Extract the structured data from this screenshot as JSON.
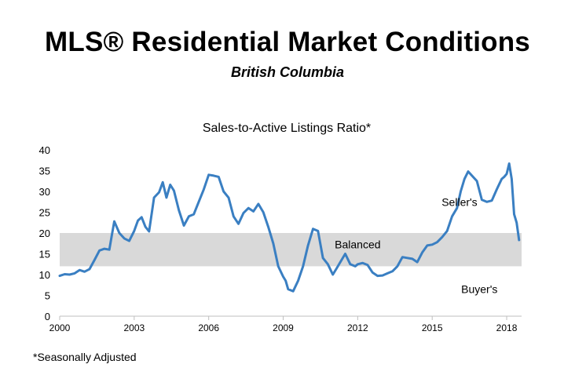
{
  "header": {
    "title": "MLS® Residential Market Conditions",
    "subtitle": "British Columbia"
  },
  "footnote": "*Seasonally Adjusted",
  "chart_data": {
    "type": "line",
    "title": "Sales-to-Active Listings Ratio*",
    "xlabel": "",
    "ylabel": "",
    "xlim": [
      2000,
      2018.6
    ],
    "ylim": [
      0,
      40
    ],
    "x_ticks": [
      2000,
      2003,
      2006,
      2009,
      2012,
      2015,
      2018
    ],
    "y_ticks": [
      0,
      5,
      10,
      15,
      20,
      25,
      30,
      35,
      40
    ],
    "grid": false,
    "band": {
      "from": 12,
      "to": 20,
      "color": "#d9d9d9"
    },
    "annotations": [
      {
        "text": "Seller's",
        "x": 2016.1,
        "y": 27.5
      },
      {
        "text": "Balanced",
        "x": 2012.0,
        "y": 17.3
      },
      {
        "text": "Buyer's",
        "x": 2016.9,
        "y": 6.5
      }
    ],
    "series": [
      {
        "color": "#3a7fc2",
        "x": [
          2000.0,
          2000.2,
          2000.4,
          2000.6,
          2000.8,
          2001.0,
          2001.2,
          2001.4,
          2001.6,
          2001.8,
          2002.0,
          2002.1,
          2002.2,
          2002.4,
          2002.6,
          2002.8,
          2003.0,
          2003.15,
          2003.3,
          2003.45,
          2003.6,
          2003.8,
          2004.0,
          2004.15,
          2004.3,
          2004.45,
          2004.6,
          2004.8,
          2005.0,
          2005.2,
          2005.4,
          2005.6,
          2005.8,
          2006.0,
          2006.2,
          2006.4,
          2006.6,
          2006.8,
          2007.0,
          2007.2,
          2007.4,
          2007.6,
          2007.8,
          2008.0,
          2008.2,
          2008.4,
          2008.6,
          2008.8,
          2009.0,
          2009.1,
          2009.2,
          2009.4,
          2009.6,
          2009.8,
          2010.0,
          2010.2,
          2010.4,
          2010.6,
          2010.8,
          2011.0,
          2011.15,
          2011.3,
          2011.5,
          2011.7,
          2011.9,
          2012.0,
          2012.2,
          2012.4,
          2012.6,
          2012.8,
          2013.0,
          2013.2,
          2013.4,
          2013.6,
          2013.8,
          2014.0,
          2014.2,
          2014.4,
          2014.6,
          2014.8,
          2015.0,
          2015.2,
          2015.4,
          2015.6,
          2015.8,
          2016.0,
          2016.15,
          2016.3,
          2016.45,
          2016.6,
          2016.8,
          2017.0,
          2017.2,
          2017.4,
          2017.6,
          2017.8,
          2017.9,
          2018.0,
          2018.1,
          2018.2,
          2018.3,
          2018.4,
          2018.5
        ],
        "y": [
          9.7,
          10.1,
          10.0,
          10.3,
          11.1,
          10.7,
          11.3,
          13.5,
          15.8,
          16.2,
          16.0,
          19.5,
          22.8,
          20.0,
          18.7,
          18.1,
          20.5,
          23.0,
          23.8,
          21.5,
          20.4,
          28.5,
          29.8,
          32.2,
          28.5,
          31.6,
          30.2,
          25.5,
          21.8,
          24.0,
          24.5,
          27.5,
          30.5,
          34.0,
          33.8,
          33.5,
          30.0,
          28.5,
          24.0,
          22.2,
          24.8,
          26.0,
          25.2,
          27.0,
          25.0,
          21.5,
          17.5,
          12.0,
          9.5,
          8.5,
          6.5,
          6.0,
          8.5,
          12.0,
          17.0,
          21.0,
          20.5,
          14.0,
          12.5,
          10.0,
          11.5,
          13.0,
          15.0,
          12.5,
          12.0,
          12.5,
          12.8,
          12.3,
          10.5,
          9.7,
          9.8,
          10.3,
          10.8,
          12.0,
          14.2,
          14.0,
          13.8,
          13.0,
          15.3,
          17.0,
          17.2,
          17.8,
          19.0,
          20.5,
          24.0,
          26.0,
          30.0,
          33.0,
          34.8,
          33.8,
          32.5,
          28.0,
          27.5,
          27.8,
          30.5,
          33.0,
          33.5,
          34.2,
          36.7,
          33.0,
          24.5,
          22.5,
          18.3
        ]
      }
    ]
  }
}
